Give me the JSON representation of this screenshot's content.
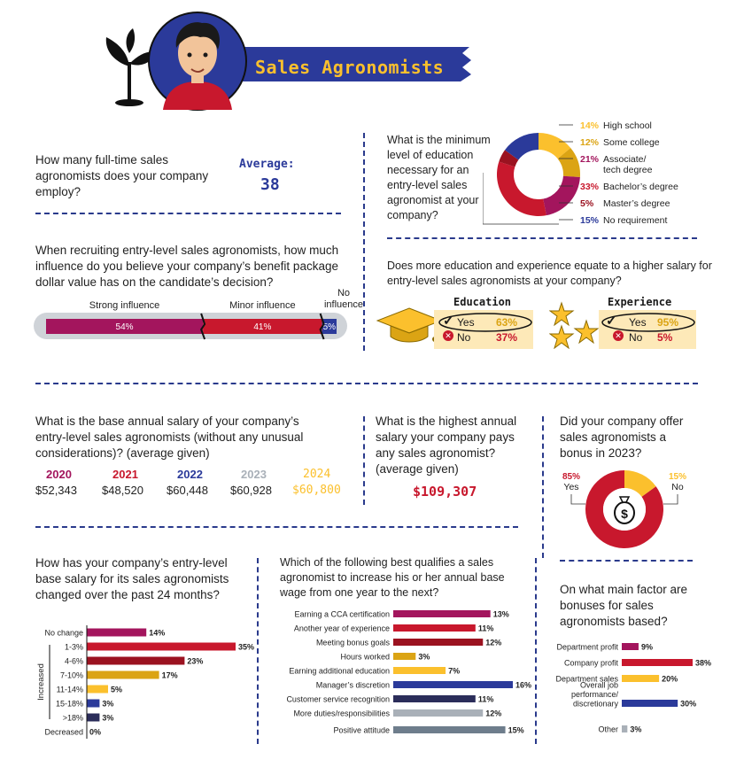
{
  "header": {
    "title": "Sales Agronomists"
  },
  "colors": {
    "magenta": "#a3155d",
    "red": "#c8182d",
    "darkred": "#9b1220",
    "gold": "#dba414",
    "yellow": "#fbc02d",
    "navy": "#2a3a8c",
    "blue": "#2b3a9a",
    "gray": "#a9b0b8",
    "darknavy": "#2b2d5a",
    "lightblue": "#a9c3d6"
  },
  "q1": {
    "question": "How many full-time sales agronomists does your company employ?",
    "avg_label": "Average:",
    "avg_value": "38"
  },
  "q2": {
    "question": "What is the minimum level of education necessary for an entry-level sales agronomist at your company?"
  },
  "q3": {
    "question": "When recruiting entry-level sales agronomists, how much influence do you believe your company’s benefit package dollar value has on the candidate’s decision?"
  },
  "q4": {
    "question": "Does more education and experience equate to a higher salary for entry-level sales agronomists at your company?"
  },
  "q5": {
    "question": "What is the base annual salary of your company’s entry-level sales agronomists (without any unusual considerations)? (average given)"
  },
  "q6": {
    "question": "What is the highest annual salary your company pays any sales agronomist? (average given)",
    "value": "$109,307"
  },
  "q7": {
    "question": "Did your company offer sales agronomists a bonus in 2023?"
  },
  "q8": {
    "question": "How has your company’s entry-level base salary for its sales agronomists changed over the past 24 months?",
    "increased_label": "Increased"
  },
  "q9": {
    "question": "Which of the following best qualifies a sales agronomist to increase his or her annual base wage from one year to the next?"
  },
  "q10": {
    "question": "On what main factor are bonuses for sales agronomists based?"
  },
  "chart_data": [
    {
      "type": "pie",
      "id": "education",
      "categories": [
        "High school",
        "Some college",
        "Associate/ tech degree",
        "Bachelor’s degree",
        "Master’s degree",
        "No requirement"
      ],
      "values": [
        14,
        12,
        21,
        33,
        5,
        15
      ],
      "labels": [
        "14%",
        "12%",
        "21%",
        "33%",
        "5%",
        "15%"
      ],
      "colors": [
        "#fbc02d",
        "#dba414",
        "#a3155d",
        "#c8182d",
        "#9b1220",
        "#2b3a9a"
      ]
    },
    {
      "type": "bar",
      "id": "influence",
      "categories": [
        "Strong influence",
        "Minor influence",
        "No influence"
      ],
      "values": [
        54,
        41,
        5
      ],
      "labels": [
        "54%",
        "41%",
        "5%"
      ],
      "colors": [
        "#a3155d",
        "#c8182d",
        "#2b3a9a"
      ]
    },
    {
      "type": "table",
      "id": "edu_exp",
      "groups": [
        {
          "title": "Education",
          "rows": [
            {
              "label": "Yes",
              "value": "63%"
            },
            {
              "label": "No",
              "value": "37%"
            }
          ]
        },
        {
          "title": "Experience",
          "rows": [
            {
              "label": "Yes",
              "value": "95%"
            },
            {
              "label": "No",
              "value": "5%"
            }
          ]
        }
      ]
    },
    {
      "type": "table",
      "id": "salary_years",
      "columns": [
        {
          "year": "2020",
          "value": "$52,343",
          "color": "#a3155d"
        },
        {
          "year": "2021",
          "value": "$48,520",
          "color": "#c8182d"
        },
        {
          "year": "2022",
          "value": "$60,448",
          "color": "#2b3a9a"
        },
        {
          "year": "2023",
          "value": "$60,928",
          "color": "#a9b0b8"
        },
        {
          "year": "2024",
          "value": "$60,800",
          "color": "#fbc02d"
        }
      ]
    },
    {
      "type": "pie",
      "id": "bonus",
      "categories": [
        "Yes",
        "No"
      ],
      "values": [
        85,
        15
      ],
      "labels": [
        "85%",
        "15%"
      ],
      "colors": [
        "#c8182d",
        "#fbc02d"
      ]
    },
    {
      "type": "bar",
      "id": "salary_change",
      "categories": [
        "No change",
        "1-3%",
        "4-6%",
        "7-10%",
        "11-14%",
        "15-18%",
        ">18%",
        "Decreased"
      ],
      "values": [
        14,
        35,
        23,
        17,
        5,
        3,
        3,
        0
      ],
      "labels": [
        "14%",
        "35%",
        "23%",
        "17%",
        "5%",
        "3%",
        "3%",
        "0%"
      ],
      "colors": [
        "#a3155d",
        "#c8182d",
        "#9b1220",
        "#dba414",
        "#fbc02d",
        "#2b3a9a",
        "#2b2d5a",
        "#a9b0b8"
      ]
    },
    {
      "type": "bar",
      "id": "qualifies",
      "categories": [
        "Earning a CCA certification",
        "Another year of experience",
        "Meeting bonus goals",
        "Hours worked",
        "Earning additional education",
        "Manager’s discretion",
        "Customer service recognition",
        "More duties/responsibilities",
        "Positive attitude"
      ],
      "values": [
        13,
        11,
        12,
        3,
        7,
        16,
        11,
        12,
        15
      ],
      "labels": [
        "13%",
        "11%",
        "12%",
        "3%",
        "7%",
        "16%",
        "11%",
        "12%",
        "15%"
      ],
      "colors": [
        "#a3155d",
        "#c8182d",
        "#9b1220",
        "#dba414",
        "#fbc02d",
        "#2b3a9a",
        "#2b2d5a",
        "#a9b0b8",
        "#6e7d8c"
      ]
    },
    {
      "type": "bar",
      "id": "bonus_factor",
      "categories": [
        "Department profit",
        "Company profit",
        "Department sales",
        "Overall job performance/ discretionary",
        "Other"
      ],
      "values": [
        9,
        38,
        20,
        30,
        3
      ],
      "labels": [
        "9%",
        "38%",
        "20%",
        "30%",
        "3%"
      ],
      "colors": [
        "#a3155d",
        "#c8182d",
        "#fbc02d",
        "#2b3a9a",
        "#a9b0b8"
      ]
    }
  ]
}
